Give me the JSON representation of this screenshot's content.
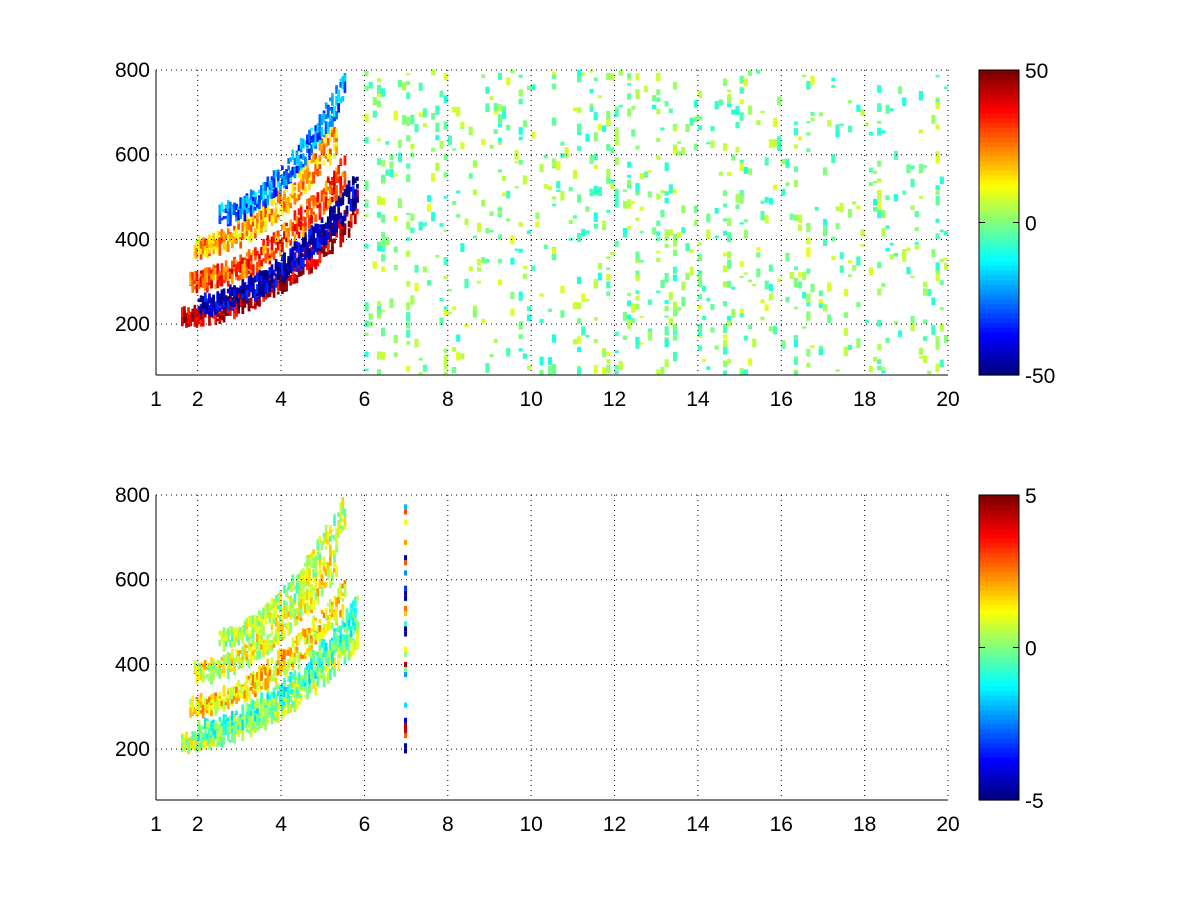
{
  "chart_data": [
    {
      "type": "heatmap",
      "title": "",
      "xlabel": "",
      "ylabel": "",
      "xlim": [
        1,
        20
      ],
      "ylim": [
        80,
        800
      ],
      "x_ticks": [
        1,
        2,
        4,
        6,
        8,
        10,
        12,
        14,
        16,
        18,
        20
      ],
      "y_ticks": [
        200,
        400,
        600,
        800
      ],
      "grid": true,
      "colormap": "jet",
      "colorbar": {
        "min": -50,
        "max": 50,
        "ticks": [
          -50,
          0,
          50
        ]
      },
      "features": [
        {
          "kind": "ridge",
          "x_range": [
            1.6,
            5.8
          ],
          "y_start": 215,
          "y_end": 470,
          "value": 45
        },
        {
          "kind": "ridge",
          "x_range": [
            2.0,
            5.8
          ],
          "y_start": 245,
          "y_end": 520,
          "value": -45
        },
        {
          "kind": "ridge",
          "x_range": [
            1.8,
            5.5
          ],
          "y_start": 300,
          "y_end": 560,
          "value": 30
        },
        {
          "kind": "ridge",
          "x_range": [
            1.9,
            5.3
          ],
          "y_start": 380,
          "y_end": 640,
          "value": 20
        },
        {
          "kind": "ridge",
          "x_range": [
            2.5,
            5.5
          ],
          "y_start": 460,
          "y_end": 760,
          "value": -25
        },
        {
          "kind": "scatter",
          "x_range": [
            6,
            20
          ],
          "y_range": [
            80,
            800
          ],
          "value_range": [
            -10,
            10
          ]
        }
      ]
    },
    {
      "type": "heatmap",
      "title": "",
      "xlabel": "",
      "ylabel": "",
      "xlim": [
        1,
        20
      ],
      "ylim": [
        80,
        800
      ],
      "x_ticks": [
        1,
        2,
        4,
        6,
        8,
        10,
        12,
        14,
        16,
        18,
        20
      ],
      "y_ticks": [
        200,
        400,
        600,
        800
      ],
      "grid": true,
      "colormap": "jet",
      "colorbar": {
        "min": -5,
        "max": 5,
        "ticks": [
          -5,
          0,
          5
        ]
      },
      "features": [
        {
          "kind": "ridge",
          "x_range": [
            1.6,
            5.8
          ],
          "y_start": 215,
          "y_end": 470,
          "value": 0.5
        },
        {
          "kind": "ridge",
          "x_range": [
            2.0,
            5.8
          ],
          "y_start": 245,
          "y_end": 520,
          "value": -0.5
        },
        {
          "kind": "ridge",
          "x_range": [
            1.8,
            5.5
          ],
          "y_start": 300,
          "y_end": 560,
          "value": 1.5
        },
        {
          "kind": "ridge",
          "x_range": [
            1.9,
            5.3
          ],
          "y_start": 380,
          "y_end": 640,
          "value": 1.0
        },
        {
          "kind": "ridge",
          "x_range": [
            2.5,
            5.5
          ],
          "y_start": 460,
          "y_end": 760,
          "value": 0.5
        },
        {
          "kind": "column",
          "x": 6.95,
          "y_range": [
            190,
            790
          ],
          "value_range": [
            -5,
            5
          ]
        }
      ]
    }
  ]
}
